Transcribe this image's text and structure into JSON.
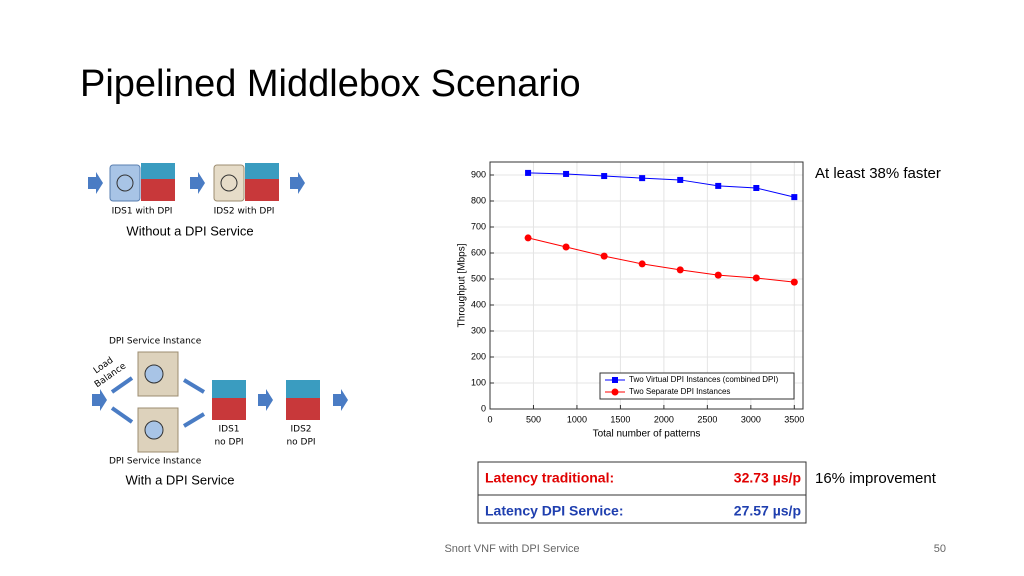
{
  "title": "Pipelined Middlebox Scenario",
  "diagram": {
    "top": {
      "labels": [
        "IDS1 with DPI",
        "IDS2 with DPI"
      ],
      "caption": "Without a DPI Service"
    },
    "bottom": {
      "instance_top": "DPI Service Instance",
      "instance_bottom": "DPI Service Instance",
      "balancer": [
        "Load",
        "Balance"
      ],
      "ids1": [
        "IDS1",
        "no DPI"
      ],
      "ids2": [
        "IDS2",
        "no DPI"
      ],
      "caption": "With a DPI Service"
    }
  },
  "chart_data": {
    "type": "line",
    "x_label": "Total number of patterns",
    "y_label": "Throughput [Mbps]",
    "x": [
      438,
      875,
      1313,
      1750,
      2188,
      2625,
      3063,
      3500
    ],
    "series": [
      {
        "name": "Two Virtual DPI Instances (combined DPI)",
        "color": "#0000ff",
        "marker": "square",
        "values": [
          908,
          904,
          896,
          888,
          881,
          858,
          850,
          815
        ]
      },
      {
        "name": "Two Separate DPI Instances",
        "color": "#ff0000",
        "marker": "circle",
        "values": [
          658,
          623,
          588,
          558,
          535,
          515,
          504,
          488
        ]
      }
    ],
    "xlim": [
      0,
      3600
    ],
    "ylim": [
      0,
      950
    ],
    "xticks": [
      0,
      500,
      1000,
      1500,
      2000,
      2500,
      3000,
      3500
    ],
    "yticks": [
      0,
      100,
      200,
      300,
      400,
      500,
      600,
      700,
      800,
      900
    ],
    "grid": true,
    "legend": "lower right"
  },
  "notes": {
    "faster": "At least 38% faster",
    "improvement": "16% improvement"
  },
  "table": {
    "rows": [
      [
        "Latency traditional:",
        "32.73 µs/p"
      ],
      [
        "Latency DPI Service:",
        "27.57 µs/p"
      ]
    ]
  },
  "footer": {
    "text": "Snort VNF with DPI Service",
    "page": "50"
  }
}
